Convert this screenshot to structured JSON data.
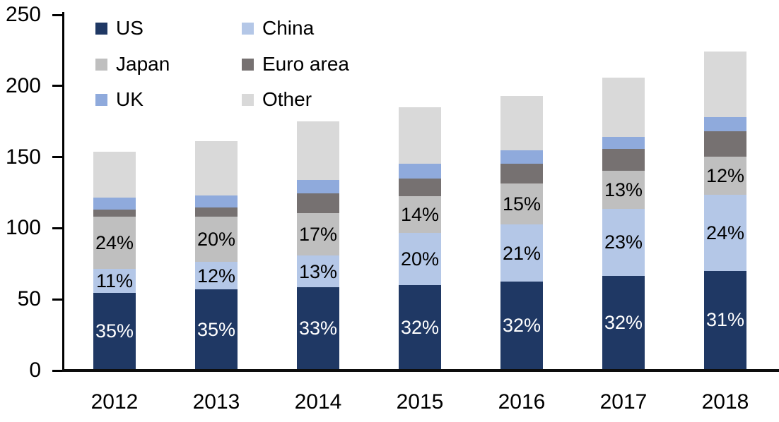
{
  "chart_data": {
    "type": "bar",
    "stacked": true,
    "title": "",
    "xlabel": "",
    "ylabel": "",
    "categories": [
      "2012",
      "2013",
      "2014",
      "2015",
      "2016",
      "2017",
      "2018"
    ],
    "series": [
      {
        "name": "US",
        "color": "#1F3864",
        "values": [
          53.5,
          56.0,
          57.4,
          58.9,
          61.4,
          65.6,
          69.1
        ],
        "labels": [
          "35%",
          "35%",
          "33%",
          "32%",
          "32%",
          "32%",
          "31%"
        ],
        "label_color": "#FFFFFF"
      },
      {
        "name": "China",
        "color": "#B4C7E7",
        "values": [
          16.9,
          19.2,
          22.6,
          36.8,
          40.3,
          47.2,
          53.5
        ],
        "labels": [
          "11%",
          "12%",
          "13%",
          "20%",
          "21%",
          "23%",
          "24%"
        ],
        "label_color": "#000000"
      },
      {
        "name": "Japan",
        "color": "#BFBFBF",
        "values": [
          36.8,
          32.0,
          29.6,
          25.8,
          28.8,
          26.7,
          26.8
        ],
        "labels": [
          "24%",
          "20%",
          "17%",
          "14%",
          "15%",
          "13%",
          "12%"
        ],
        "label_color": "#000000"
      },
      {
        "name": "Euro area",
        "color": "#767171",
        "values": [
          5.0,
          6.3,
          14.0,
          12.4,
          13.9,
          15.3,
          18.0
        ],
        "labels": null,
        "label_color": null
      },
      {
        "name": "UK",
        "color": "#8FAADC",
        "values": [
          8.2,
          8.4,
          9.5,
          10.2,
          9.3,
          8.6,
          9.8
        ],
        "labels": null,
        "label_color": null
      },
      {
        "name": "Other",
        "color": "#D9D9D9",
        "values": [
          32.6,
          38.1,
          40.9,
          39.9,
          38.3,
          41.6,
          45.8
        ],
        "labels": null,
        "label_color": null
      }
    ],
    "totals": [
      153,
      160,
      174,
      184,
      192,
      205,
      223
    ],
    "y_axis": {
      "min": 0,
      "max": 250,
      "ticks": [
        0,
        50,
        100,
        150,
        200,
        250
      ]
    },
    "grid": false,
    "legend": {
      "position": "top-left",
      "rows": [
        [
          "US",
          "China"
        ],
        [
          "Japan",
          "Euro area"
        ],
        [
          "UK",
          "Other"
        ]
      ]
    }
  }
}
